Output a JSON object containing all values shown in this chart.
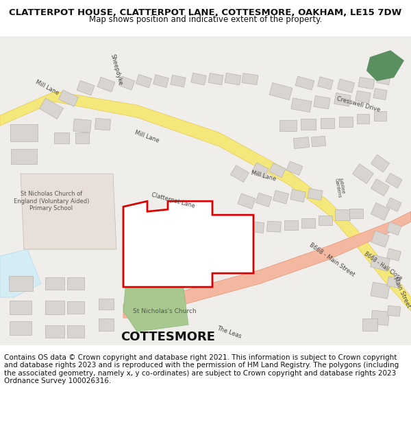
{
  "title_line1": "CLATTERPOT HOUSE, CLATTERPOT LANE, COTTESMORE, OAKHAM, LE15 7DW",
  "title_line2": "Map shows position and indicative extent of the property.",
  "footer_text": "Contains OS data © Crown copyright and database right 2021. This information is subject to Crown copyright and database rights 2023 and is reproduced with the permission of HM Land Registry. The polygons (including the associated geometry, namely x, y co-ordinates) are subject to Crown copyright and database rights 2023 Ordnance Survey 100026316.",
  "map_bg_color": "#f0eeeb",
  "title_bg_color": "#ffffff",
  "footer_bg_color": "#ffffff",
  "title_fontsize": 9.5,
  "subtitle_fontsize": 8.5,
  "footer_fontsize": 7.5,
  "fig_width": 6.0,
  "fig_height": 6.25,
  "road_yellow_color": "#f5e87a",
  "road_yellow_border": "#e8c84a",
  "road_pink_color": "#f4b8a0",
  "road_pink_border": "#e89070",
  "green_area_color": "#a8c890",
  "green_dark_color": "#5a9060",
  "plot_outline_color": "#dd0000",
  "plot_fill_color": "#ffffff",
  "school_fill": "#e8e0d8",
  "building_color": "#d8d4cf",
  "building_edge": "#b8b4af"
}
